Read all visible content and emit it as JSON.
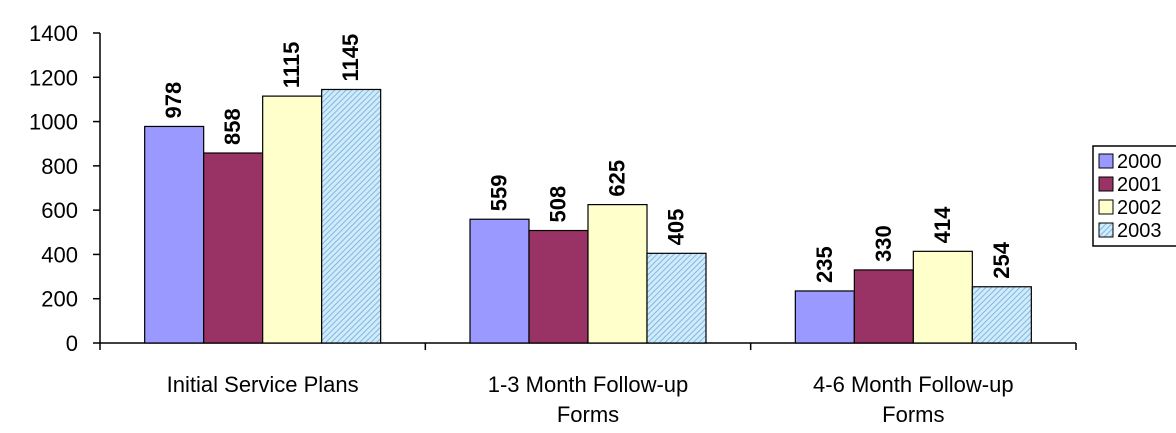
{
  "chart_data": {
    "type": "bar",
    "categories": [
      [
        "Initial Service Plans"
      ],
      [
        "1-3 Month Follow-up",
        "Forms"
      ],
      [
        "4-6 Month Follow-up",
        "Forms"
      ]
    ],
    "series": [
      {
        "name": "2000",
        "values": [
          978,
          559,
          235
        ],
        "color": "#9999FF",
        "pattern": "solid"
      },
      {
        "name": "2001",
        "values": [
          858,
          508,
          330
        ],
        "color": "#993366",
        "pattern": "solid"
      },
      {
        "name": "2002",
        "values": [
          1115,
          625,
          414
        ],
        "color": "#FFFFCC",
        "pattern": "solid"
      },
      {
        "name": "2003",
        "values": [
          1145,
          405,
          254
        ],
        "color": "#CCECFF",
        "pattern": "hatched"
      }
    ],
    "title": "",
    "xlabel": "",
    "ylabel": "",
    "ylim": [
      0,
      1400
    ],
    "yticks": [
      0,
      200,
      400,
      600,
      800,
      1000,
      1200,
      1400
    ],
    "grid": false,
    "legend_position": "right"
  }
}
